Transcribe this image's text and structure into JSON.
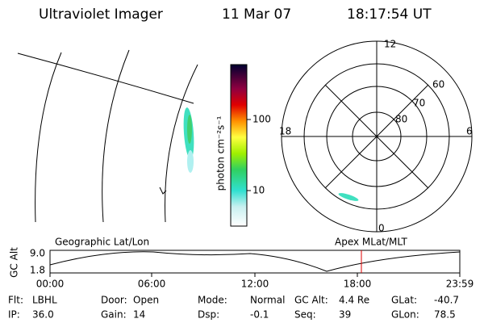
{
  "header": {
    "instrument": "Ultraviolet Imager",
    "date": "11 Mar 07",
    "time": "18:17:54 UT"
  },
  "colorbar": {
    "label": "photon cm⁻²s⁻¹",
    "ticks": [
      "100",
      "10"
    ]
  },
  "polar": {
    "mlt_labels": [
      "12",
      "18",
      "6",
      "0"
    ],
    "lat_labels": [
      "60",
      "70",
      "80"
    ]
  },
  "timeline": {
    "left_title": "Geographic Lat/Lon",
    "right_title": "Apex MLat/MLT",
    "y_label": "GC Alt",
    "y_ticks": [
      "9.0",
      "1.8"
    ],
    "x_ticks": [
      "00:00",
      "06:00",
      "12:00",
      "18:00",
      "23:59"
    ]
  },
  "info": [
    [
      [
        "Flt:",
        "LBHL"
      ],
      [
        "Door:",
        "Open"
      ],
      [
        "Mode:",
        "Normal"
      ],
      [
        "GC Alt:",
        "4.4 Re"
      ],
      [
        "GLat:",
        "-40.7"
      ]
    ],
    [
      [
        "IP:",
        "36.0"
      ],
      [
        "Gain:",
        "14"
      ],
      [
        "Dsp:",
        "-0.1"
      ],
      [
        "Seq:",
        "39"
      ],
      [
        "GLon:",
        "78.5"
      ]
    ]
  ]
}
